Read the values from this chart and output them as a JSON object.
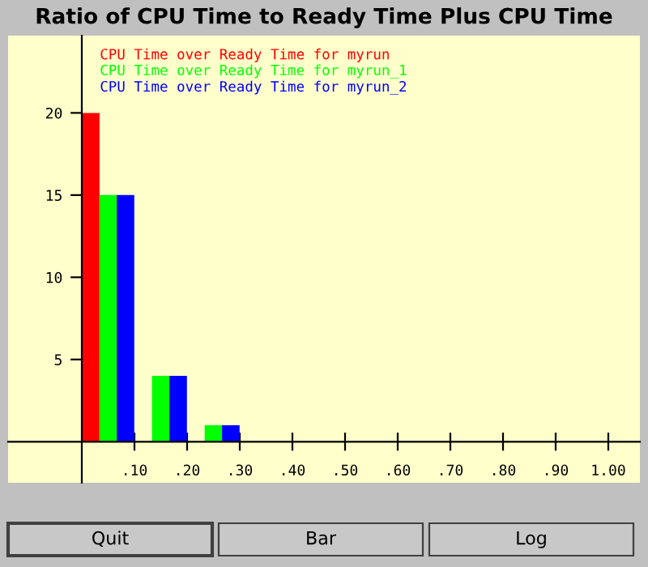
{
  "chart_data": {
    "type": "bar",
    "title": "Ratio of CPU Time to Ready Time Plus CPU Time",
    "series": [
      {
        "name": "CPU Time over Ready Time for myrun",
        "color": "#ff0000",
        "x": [
          0.017,
          0.117,
          0.217
        ],
        "values": [
          20,
          0,
          0
        ]
      },
      {
        "name": "CPU Time over Ready Time for myrun_1",
        "color": "#00ff00",
        "x": [
          0.05,
          0.15,
          0.25
        ],
        "values": [
          15,
          4,
          1
        ]
      },
      {
        "name": "CPU Time over Ready Time for myrun_2",
        "color": "#0000ff",
        "x": [
          0.083,
          0.183,
          0.283
        ],
        "values": [
          15,
          4,
          1
        ]
      }
    ],
    "xlim": [
      -0.14,
      1.06
    ],
    "ylim": [
      -2.5,
      24.7
    ],
    "xticks": [
      {
        "value": 0.1,
        "label": ".10"
      },
      {
        "value": 0.2,
        "label": ".20"
      },
      {
        "value": 0.3,
        "label": ".30"
      },
      {
        "value": 0.4,
        "label": ".40"
      },
      {
        "value": 0.5,
        "label": ".50"
      },
      {
        "value": 0.6,
        "label": ".60"
      },
      {
        "value": 0.7,
        "label": ".70"
      },
      {
        "value": 0.8,
        "label": ".80"
      },
      {
        "value": 0.9,
        "label": ".90"
      },
      {
        "value": 1.0,
        "label": "1.00"
      }
    ],
    "yticks": [
      5,
      10,
      15,
      20
    ],
    "grid": false,
    "legend": "top left",
    "annotations": [
      "Quit",
      "Bar",
      "Log"
    ]
  }
}
